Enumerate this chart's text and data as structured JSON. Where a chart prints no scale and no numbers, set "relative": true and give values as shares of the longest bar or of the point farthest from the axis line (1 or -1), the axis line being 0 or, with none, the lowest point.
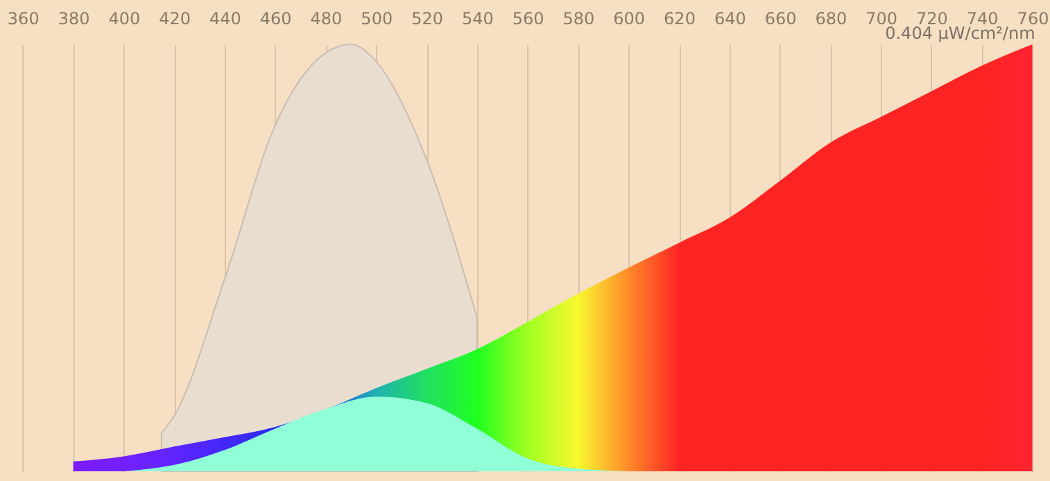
{
  "chart_data": {
    "type": "area",
    "relative": true,
    "xlim": [
      351,
      767
    ],
    "xticks": [
      360,
      380,
      400,
      420,
      440,
      460,
      480,
      500,
      520,
      540,
      560,
      580,
      600,
      620,
      640,
      660,
      680,
      700,
      720,
      740,
      760
    ],
    "grid": "x",
    "annotations": [
      {
        "text": "0.404 µW/cm²/nm",
        "x": 760,
        "y": 1
      }
    ],
    "series": [
      {
        "color": "#e9ddd0",
        "x": [
          415,
          420,
          440,
          460,
          480,
          490,
          500,
          520,
          540
        ],
        "values": [
          0.09,
          0.13,
          0.45,
          0.81,
          0.98,
          1.0,
          0.96,
          0.73,
          0.36
        ]
      },
      {
        "x": [
          380,
          400,
          420,
          440,
          460,
          480,
          500,
          520,
          540,
          560,
          580,
          600,
          620,
          640,
          660,
          680,
          700,
          720,
          740,
          760
        ],
        "values": [
          0.023,
          0.035,
          0.058,
          0.08,
          0.104,
          0.145,
          0.195,
          0.24,
          0.286,
          0.35,
          0.416,
          0.477,
          0.535,
          0.594,
          0.68,
          0.77,
          0.83,
          0.89,
          0.95,
          1.0
        ],
        "colors": [
          "#7a1cff",
          "#7320ff",
          "#5f24ff",
          "#4428f8",
          "#2a2cf0",
          "#2050f0",
          "#20b0b0",
          "#20e060",
          "#20ff20",
          "#a0ff20",
          "#f8f830",
          "#ff8a2a",
          "#ff2424",
          "#ff2424",
          "#ff2424",
          "#ff2424",
          "#ff2424",
          "#ff2424",
          "#ff2424",
          "#ff2430"
        ]
      },
      {
        "color": "#90ffd8",
        "x": [
          400,
          420,
          440,
          460,
          480,
          500,
          520,
          540,
          560,
          580,
          600
        ],
        "values": [
          0,
          0.015,
          0.05,
          0.1,
          0.146,
          0.175,
          0.16,
          0.1,
          0.03,
          0.006,
          0
        ]
      }
    ]
  }
}
